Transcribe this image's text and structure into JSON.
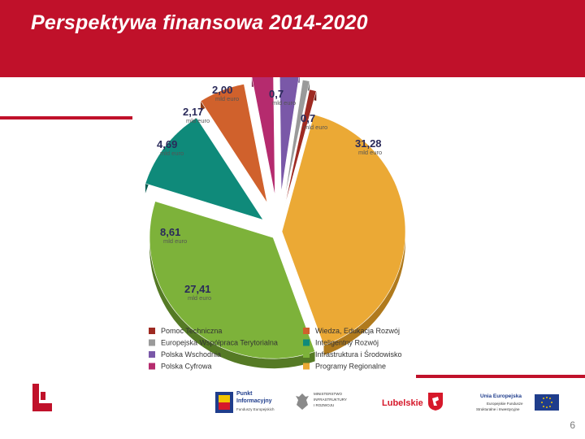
{
  "slide": {
    "title": "Perspektywa finansowa 2014-2020",
    "page_number": "6"
  },
  "colors": {
    "brand_red": "#c0112a"
  },
  "chart_data": {
    "type": "pie",
    "unit_label": "mld euro",
    "legend_position": "bottom",
    "slices": [
      {
        "name": "Programy Regionalne",
        "value": 31.28,
        "label": "31,28",
        "color": "#eba935",
        "side": "#b07a1d"
      },
      {
        "name": "Infrastruktura i Środowisko",
        "value": 27.41,
        "label": "27,41",
        "color": "#7db23a",
        "side": "#557a25"
      },
      {
        "name": "Inteligentny Rozwój",
        "value": 8.61,
        "label": "8,61",
        "color": "#0f8a7a",
        "side": "#0a5d52"
      },
      {
        "name": "Wiedza, Edukacja Rozwój",
        "value": 4.69,
        "label": "4,69",
        "color": "#d0612c",
        "side": "#8e3f1a"
      },
      {
        "name": "Polska Cyfrowa",
        "value": 2.17,
        "label": "2,17",
        "color": "#b52b6e",
        "side": "#7a1c4a"
      },
      {
        "name": "Polska Wschodnia",
        "value": 2.0,
        "label": "2,00",
        "color": "#7a58a8",
        "side": "#523a73"
      },
      {
        "name": "Europejska Współpraca Terytorialna",
        "value": 0.7,
        "label": "0,7",
        "color": "#9a9a9a",
        "side": "#666666"
      },
      {
        "name": "Pomoc Techniczna",
        "value": 0.7,
        "label": "0,7",
        "color": "#9e2a22",
        "side": "#6b1b15"
      }
    ],
    "legend": [
      {
        "label": "Pomoc Techniczna",
        "color": "#9e2a22"
      },
      {
        "label": "Wiedza, Edukacja Rozwój",
        "color": "#d0612c"
      },
      {
        "label": "Europejska Współpraca Terytorialna",
        "color": "#9a9a9a"
      },
      {
        "label": "Inteligentny Rozwój",
        "color": "#0f8a7a"
      },
      {
        "label": "Polska Wschodnia",
        "color": "#7a58a8"
      },
      {
        "label": "Infrastruktura i Środowisko",
        "color": "#7db23a"
      },
      {
        "label": "Polska Cyfrowa",
        "color": "#b52b6e"
      },
      {
        "label": "Programy Regionalne",
        "color": "#eba935"
      }
    ]
  },
  "footer": {
    "punkt_title": "Punkt",
    "punkt_title2": "Informacyjny",
    "punkt_sub": "Funduszy Europejskich",
    "ministry_1": "MINISTERSTWO",
    "ministry_2": "INFRASTRUKTURY",
    "ministry_3": "I ROZWOJU",
    "region": "Lubelskie",
    "eu_title": "Unia Europejska",
    "eu_sub1": "Europejskie Fundusze",
    "eu_sub2": "Strukturalne i Inwestycyjne"
  }
}
